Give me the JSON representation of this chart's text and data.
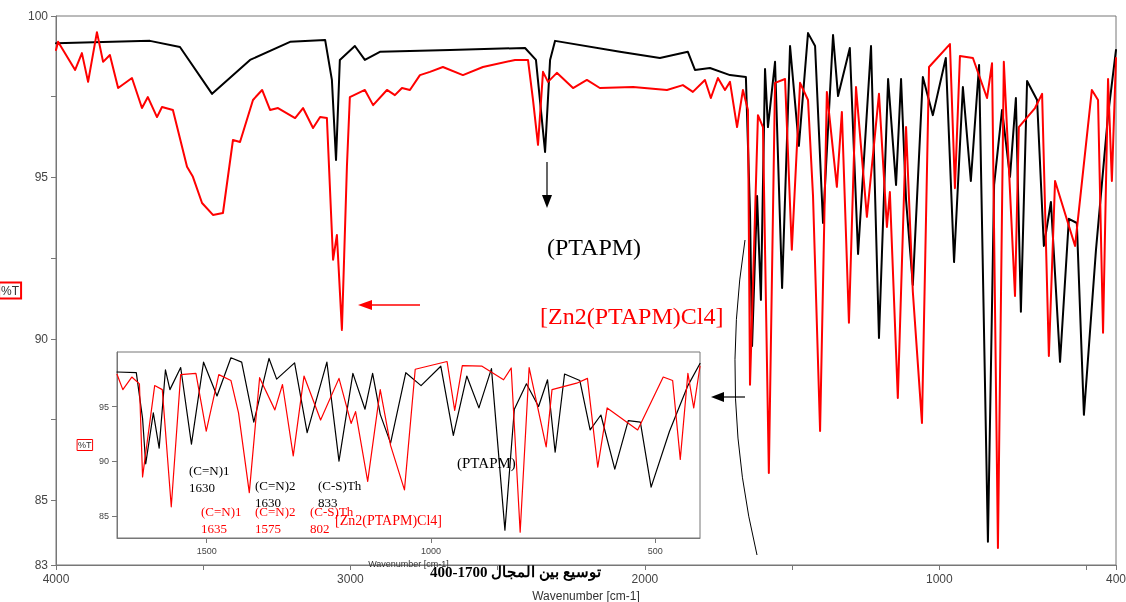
{
  "chart_data": [
    {
      "type": "line",
      "xlabel": "Wavenumber [cm-1]",
      "ylabel": "%T",
      "xlim": [
        4000,
        400
      ],
      "ylim": [
        83,
        100
      ],
      "xticks": [
        4000,
        {
          "value": 3500,
          "label": null
        },
        3000,
        {
          "value": 2500,
          "label": null
        },
        2000,
        {
          "value": 1500,
          "label": null
        },
        1000,
        {
          "value": 500,
          "label": null
        },
        400
      ],
      "yticks": [
        83,
        85,
        {
          "value": 87.5,
          "label": null
        },
        90,
        {
          "value": 92.5,
          "label": null
        },
        95,
        {
          "value": 97.5,
          "label": null
        },
        100
      ],
      "grid": false,
      "marker": "none",
      "line_style": "solid",
      "series": [
        {
          "name": "(PTAPM)",
          "color": "#000000",
          "x": [
            4000,
            3681,
            3579,
            3470,
            3341,
            3205,
            3086,
            3063,
            3049,
            3036,
            2985,
            2951,
            2900,
            2662,
            2407,
            2370,
            2339,
            2322,
            2305,
            2085,
            1949,
            1854,
            1830,
            1779,
            1711,
            1657,
            1643,
            1636,
            1619,
            1606,
            1592,
            1582,
            1558,
            1534,
            1507,
            1477,
            1446,
            1422,
            1395,
            1361,
            1344,
            1304,
            1276,
            1232,
            1205,
            1174,
            1147,
            1130,
            1113,
            1090,
            1056,
            1022,
            978,
            950,
            920,
            893,
            865,
            835,
            814,
            787,
            760,
            740,
            723,
            702,
            668,
            645,
            621,
            590,
            560,
            533,
            509,
            468,
            427,
            400
          ],
          "values": [
            99.16,
            99.23,
            99.04,
            97.59,
            98.64,
            99.2,
            99.26,
            98.02,
            95.54,
            98.64,
            99.07,
            98.64,
            98.89,
            98.95,
            99.01,
            98.64,
            95.79,
            98.64,
            99.23,
            98.89,
            98.7,
            98.89,
            98.33,
            98.39,
            98.17,
            98.11,
            93.93,
            89.78,
            94.43,
            91.21,
            98.36,
            96.56,
            98.58,
            91.58,
            99.07,
            95.98,
            99.47,
            99.07,
            93.59,
            99.41,
            97.52,
            99.01,
            92.63,
            99.07,
            90.03,
            98.05,
            94.77,
            98.05,
            94.3,
            91.67,
            98.11,
            96.93,
            98.7,
            92.38,
            97.8,
            94.89,
            98.48,
            83.72,
            94.77,
            97.09,
            95.02,
            97.46,
            90.84,
            97.99,
            97.4,
            92.88,
            94.24,
            89.29,
            93.72,
            93.59,
            87.65,
            92.76,
            96.93,
            98.95
          ]
        },
        {
          "name": "[Zn2(PTAPM)Cl4]",
          "color": "#ff0000",
          "x": [
            4000,
            3993,
            3935,
            3912,
            3891,
            3861,
            3840,
            3817,
            3789,
            3742,
            3708,
            3688,
            3657,
            3640,
            3603,
            3555,
            3535,
            3504,
            3467,
            3433,
            3399,
            3375,
            3331,
            3300,
            3273,
            3246,
            3188,
            3161,
            3127,
            3103,
            3080,
            3059,
            3046,
            3029,
            3012,
            3002,
            2951,
            2923,
            2876,
            2849,
            2825,
            2798,
            2764,
            2730,
            2686,
            2618,
            2550,
            2441,
            2397,
            2380,
            2363,
            2346,
            2329,
            2299,
            2244,
            2197,
            2153,
            2040,
            1925,
            1871,
            1837,
            1796,
            1776,
            1752,
            1728,
            1711,
            1687,
            1667,
            1650,
            1643,
            1616,
            1599,
            1579,
            1558,
            1524,
            1501,
            1473,
            1446,
            1429,
            1405,
            1382,
            1348,
            1331,
            1307,
            1283,
            1246,
            1205,
            1178,
            1168,
            1141,
            1113,
            1090,
            1059,
            1035,
            964,
            947,
            930,
            886,
            838,
            821,
            801,
            781,
            743,
            730,
            675,
            651,
            628,
            607,
            539,
            482,
            461,
            444,
            427,
            414,
            400
          ],
          "values": [
            98.95,
            99.2,
            98.33,
            98.85,
            97.96,
            99.5,
            98.58,
            98.79,
            97.77,
            98.08,
            97.15,
            97.49,
            96.87,
            97.18,
            97.09,
            95.33,
            95.02,
            94.21,
            93.84,
            93.9,
            96.16,
            96.1,
            97.4,
            97.71,
            97.09,
            97.15,
            96.84,
            97.15,
            96.53,
            96.87,
            96.84,
            92.45,
            93.22,
            90.28,
            95.33,
            97.49,
            97.71,
            97.24,
            97.71,
            97.55,
            97.77,
            97.71,
            98.17,
            98.27,
            98.42,
            98.17,
            98.42,
            98.64,
            98.64,
            97.4,
            96.01,
            98.27,
            97.96,
            98.24,
            97.77,
            98.02,
            97.77,
            97.8,
            97.71,
            97.86,
            97.65,
            98.02,
            97.46,
            98.08,
            97.71,
            97.96,
            96.56,
            97.71,
            97.09,
            88.58,
            96.93,
            96.56,
            85.85,
            97.93,
            98.05,
            92.76,
            97.93,
            97.4,
            94.43,
            87.15,
            97.65,
            94.71,
            97.03,
            90.5,
            97.8,
            93.78,
            97.59,
            93.47,
            94.55,
            88.17,
            96.56,
            91.46,
            87.4,
            98.42,
            99.13,
            94.67,
            98.76,
            98.7,
            97.46,
            98.54,
            83.53,
            98.58,
            91.33,
            96.56,
            97.15,
            97.59,
            89.47,
            94.89,
            92.88,
            97.71,
            97.4,
            90.19,
            98.05,
            94.89,
            98.7
          ]
        }
      ]
    },
    {
      "type": "line",
      "xlabel": "Wavenumber [cm-1]",
      "ylabel": "%T",
      "xlim": [
        1700,
        400
      ],
      "ylim": [
        83,
        100
      ],
      "xticks": [
        1500,
        1000,
        500
      ],
      "yticks": [
        85,
        90,
        95
      ],
      "grid": false,
      "marker": "none",
      "line_style": "solid",
      "annotations": [
        "(C=N)1\n1630",
        "(C=N)2\n1630",
        "(C-S)Th\n833",
        "(C=N)1\n1635",
        "(C=N)2\n1575",
        "(C-S)Th\n802",
        "توسيع بين المجال 1700-400"
      ],
      "series": [
        {
          "name": "(PTAPM)",
          "color": "#000000",
          "x": [
            1700,
            1657,
            1643,
            1636,
            1619,
            1606,
            1592,
            1582,
            1558,
            1534,
            1507,
            1477,
            1446,
            1422,
            1395,
            1361,
            1344,
            1304,
            1276,
            1232,
            1205,
            1174,
            1147,
            1130,
            1113,
            1090,
            1056,
            1022,
            978,
            950,
            920,
            893,
            865,
            835,
            814,
            787,
            760,
            740,
            723,
            702,
            668,
            645,
            621,
            590,
            560,
            533,
            509,
            468,
            427,
            400
          ],
          "values": [
            98.17,
            98.11,
            93.93,
            89.78,
            94.43,
            91.21,
            98.36,
            96.56,
            98.58,
            91.58,
            99.07,
            95.98,
            99.47,
            99.07,
            93.59,
            99.41,
            97.52,
            99.01,
            92.63,
            99.07,
            90.03,
            98.05,
            94.77,
            98.05,
            94.3,
            91.67,
            98.11,
            96.93,
            98.7,
            92.38,
            97.8,
            94.89,
            98.48,
            83.72,
            94.77,
            97.09,
            95.02,
            97.46,
            90.84,
            97.99,
            97.4,
            92.88,
            94.24,
            89.29,
            93.72,
            93.59,
            87.65,
            92.76,
            96.93,
            98.95
          ]
        },
        {
          "name": "[Zn2(PTAPM)Cl4]",
          "color": "#ff0000",
          "x": [
            1700,
            1687,
            1667,
            1650,
            1643,
            1616,
            1599,
            1579,
            1558,
            1524,
            1501,
            1473,
            1446,
            1429,
            1405,
            1382,
            1348,
            1331,
            1307,
            1283,
            1246,
            1205,
            1178,
            1168,
            1141,
            1113,
            1090,
            1059,
            1035,
            964,
            947,
            930,
            886,
            838,
            821,
            801,
            781,
            743,
            730,
            675,
            651,
            628,
            607,
            539,
            482,
            461,
            444,
            427,
            414,
            400
          ],
          "values": [
            97.96,
            96.56,
            97.71,
            97.09,
            88.58,
            96.93,
            96.56,
            85.85,
            97.93,
            98.05,
            92.76,
            97.93,
            97.4,
            94.43,
            87.15,
            97.65,
            94.71,
            97.03,
            90.5,
            97.8,
            93.78,
            97.59,
            93.47,
            94.55,
            88.17,
            96.56,
            91.46,
            87.4,
            98.42,
            99.13,
            94.67,
            98.76,
            98.7,
            97.46,
            98.54,
            83.53,
            98.58,
            91.33,
            96.56,
            97.15,
            97.59,
            89.47,
            94.89,
            92.88,
            97.71,
            97.4,
            90.19,
            98.05,
            94.89,
            98.7
          ]
        }
      ]
    }
  ]
}
